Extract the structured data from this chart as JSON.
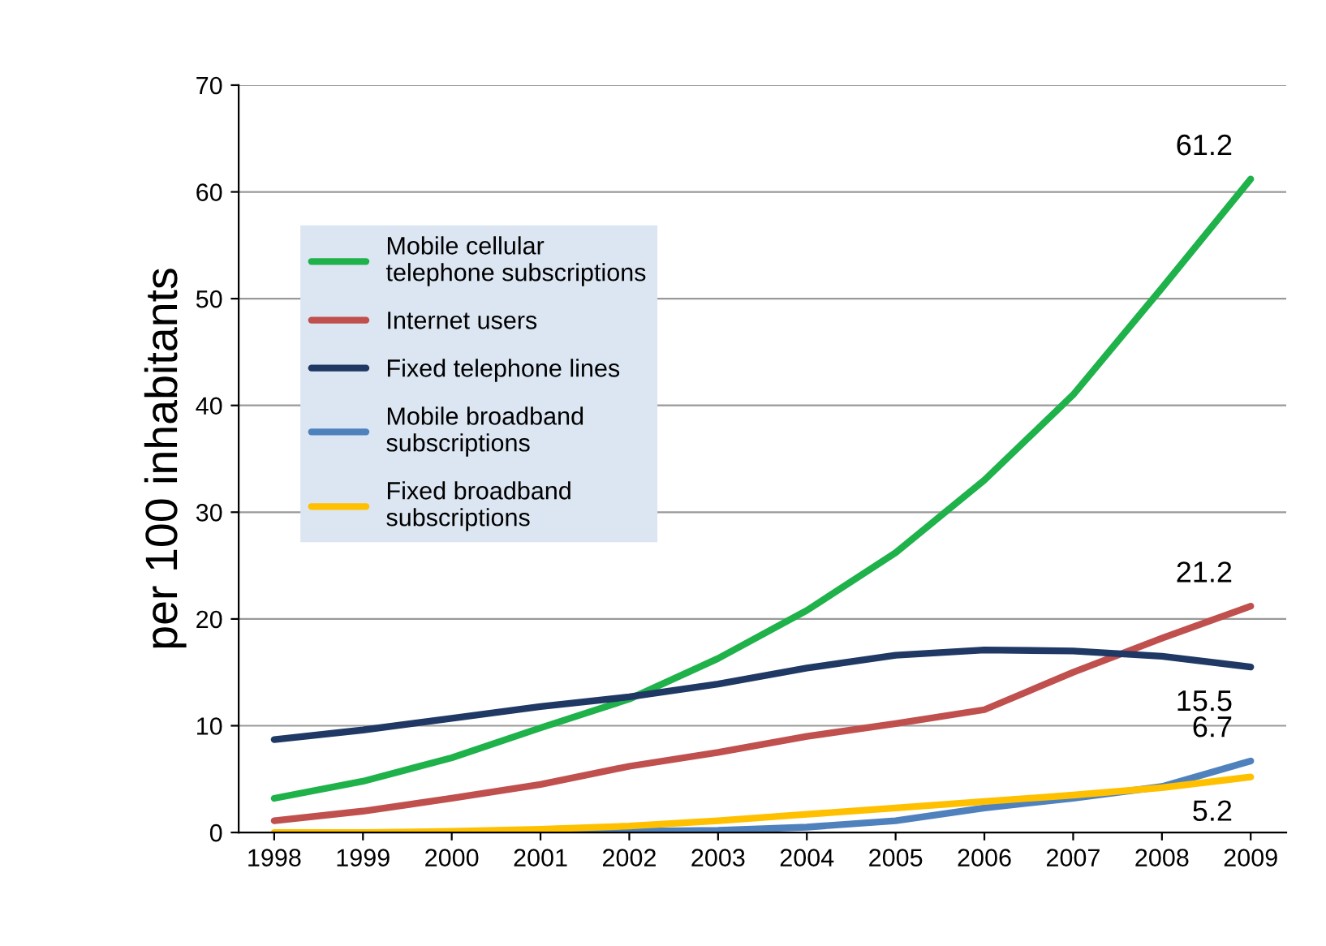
{
  "chart_data": {
    "type": "line",
    "ylabel": "per 100 inhabitants",
    "categories": [
      "1998",
      "1999",
      "2000",
      "2001",
      "2002",
      "2003",
      "2004",
      "2005",
      "2006",
      "2007",
      "2008",
      "2009"
    ],
    "series": [
      {
        "name": "Mobile cellular\ntelephone subscriptions",
        "color": "#1fb24a",
        "values": [
          3.2,
          4.8,
          7.0,
          9.8,
          12.5,
          16.3,
          20.8,
          26.2,
          33.0,
          41.0,
          51.0,
          61.2
        ],
        "value_labels": [
          null,
          null,
          null,
          null,
          null,
          null,
          null,
          null,
          null,
          null,
          null,
          "61.2"
        ]
      },
      {
        "name": "Internet users",
        "color": "#c0504d",
        "values": [
          1.1,
          2.0,
          3.2,
          4.5,
          6.2,
          7.5,
          9.0,
          10.2,
          11.5,
          15.0,
          18.2,
          21.2
        ],
        "value_labels": [
          null,
          null,
          null,
          null,
          null,
          null,
          null,
          null,
          null,
          null,
          null,
          "21.2"
        ]
      },
      {
        "name": "Fixed telephone lines",
        "color": "#1f3864",
        "values": [
          8.7,
          9.6,
          10.7,
          11.8,
          12.7,
          13.9,
          15.4,
          16.6,
          17.1,
          17.0,
          16.5,
          15.5
        ],
        "value_labels": [
          null,
          null,
          null,
          null,
          null,
          null,
          null,
          null,
          null,
          null,
          null,
          "15.5"
        ]
      },
      {
        "name": "Mobile broadband\nsubscriptions",
        "color": "#4f81bd",
        "values": [
          null,
          null,
          0.0,
          0.0,
          0.1,
          0.2,
          0.5,
          1.1,
          2.3,
          3.2,
          4.3,
          6.7
        ],
        "value_labels": [
          null,
          null,
          null,
          null,
          null,
          null,
          null,
          null,
          null,
          null,
          null,
          "6.7"
        ]
      },
      {
        "name": "Fixed broadband\nsubscriptions",
        "color": "#ffc000",
        "values": [
          0.0,
          0.0,
          0.1,
          0.3,
          0.6,
          1.1,
          1.7,
          2.3,
          2.9,
          3.5,
          4.2,
          5.2
        ],
        "value_labels": [
          null,
          null,
          null,
          null,
          null,
          null,
          null,
          null,
          null,
          null,
          null,
          "5.2"
        ]
      }
    ],
    "ylim": [
      0,
      70
    ],
    "yticks": [
      0,
      10,
      20,
      30,
      40,
      50,
      60,
      70
    ],
    "grid": "y",
    "legend": "top left",
    "marker": "none",
    "line_style": "solid"
  }
}
